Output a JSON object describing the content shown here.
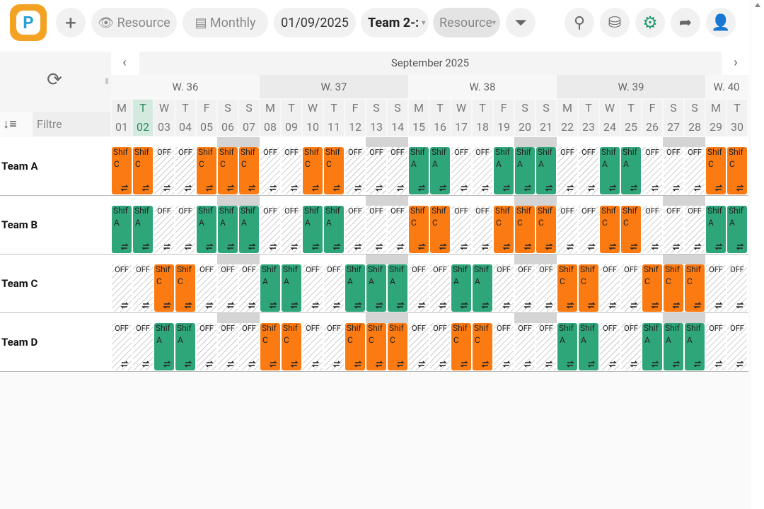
{
  "toolbar": {
    "view": "Resource",
    "period": "Monthly",
    "date": "01/09/2025",
    "team": "Team 2-:",
    "resource": "Resource"
  },
  "calendar": {
    "month": "September 2025",
    "filter_placeholder": "Filtre",
    "shift_label": "Shif",
    "shift_colors": {
      "A": "#2ea67a",
      "C": "#fb7a12"
    },
    "weeks": [
      "W. 36",
      "W. 37",
      "W. 38",
      "W. 39",
      "W. 40"
    ],
    "days": [
      [
        "M",
        "01"
      ],
      [
        "T",
        "02"
      ],
      [
        "W",
        "03"
      ],
      [
        "T",
        "04"
      ],
      [
        "F",
        "05"
      ],
      [
        "S",
        "06"
      ],
      [
        "S",
        "07"
      ],
      [
        "M",
        "08"
      ],
      [
        "T",
        "09"
      ],
      [
        "W",
        "10"
      ],
      [
        "T",
        "11"
      ],
      [
        "F",
        "12"
      ],
      [
        "S",
        "13"
      ],
      [
        "S",
        "14"
      ],
      [
        "M",
        "15"
      ],
      [
        "T",
        "16"
      ],
      [
        "W",
        "17"
      ],
      [
        "T",
        "18"
      ],
      [
        "F",
        "19"
      ],
      [
        "S",
        "20"
      ],
      [
        "S",
        "21"
      ],
      [
        "M",
        "22"
      ],
      [
        "T",
        "23"
      ],
      [
        "W",
        "24"
      ],
      [
        "T",
        "25"
      ],
      [
        "F",
        "26"
      ],
      [
        "S",
        "27"
      ],
      [
        "S",
        "28"
      ],
      [
        "M",
        "29"
      ],
      [
        "T",
        "30"
      ]
    ],
    "rows": [
      {
        "team": "Team A",
        "cells": [
          "C",
          "C",
          "OFF",
          "OFF",
          "C",
          "C",
          "C",
          "OFF",
          "OFF",
          "C",
          "C",
          "OFF",
          "OFF",
          "OFF",
          "A",
          "A",
          "OFF",
          "OFF",
          "A",
          "A",
          "A",
          "OFF",
          "OFF",
          "A",
          "A",
          "OFF",
          "OFF",
          "OFF",
          "C",
          "C"
        ]
      },
      {
        "team": "Team B",
        "cells": [
          "A",
          "A",
          "OFF",
          "OFF",
          "A",
          "A",
          "A",
          "OFF",
          "OFF",
          "A",
          "A",
          "OFF",
          "OFF",
          "OFF",
          "C",
          "C",
          "OFF",
          "OFF",
          "C",
          "C",
          "C",
          "OFF",
          "OFF",
          "C",
          "C",
          "OFF",
          "OFF",
          "OFF",
          "A",
          "A"
        ]
      },
      {
        "team": "Team C",
        "cells": [
          "OFF",
          "OFF",
          "C",
          "C",
          "OFF",
          "OFF",
          "OFF",
          "A",
          "A",
          "OFF",
          "OFF",
          "A",
          "A",
          "A",
          "OFF",
          "OFF",
          "A",
          "A",
          "OFF",
          "OFF",
          "OFF",
          "C",
          "C",
          "OFF",
          "OFF",
          "C",
          "C",
          "C",
          "OFF",
          "OFF"
        ]
      },
      {
        "team": "Team D",
        "cells": [
          "OFF",
          "OFF",
          "A",
          "A",
          "OFF",
          "OFF",
          "OFF",
          "C",
          "C",
          "OFF",
          "OFF",
          "C",
          "C",
          "C",
          "OFF",
          "OFF",
          "C",
          "C",
          "OFF",
          "OFF",
          "OFF",
          "A",
          "A",
          "OFF",
          "OFF",
          "A",
          "A",
          "A",
          "OFF",
          "OFF"
        ]
      }
    ]
  }
}
